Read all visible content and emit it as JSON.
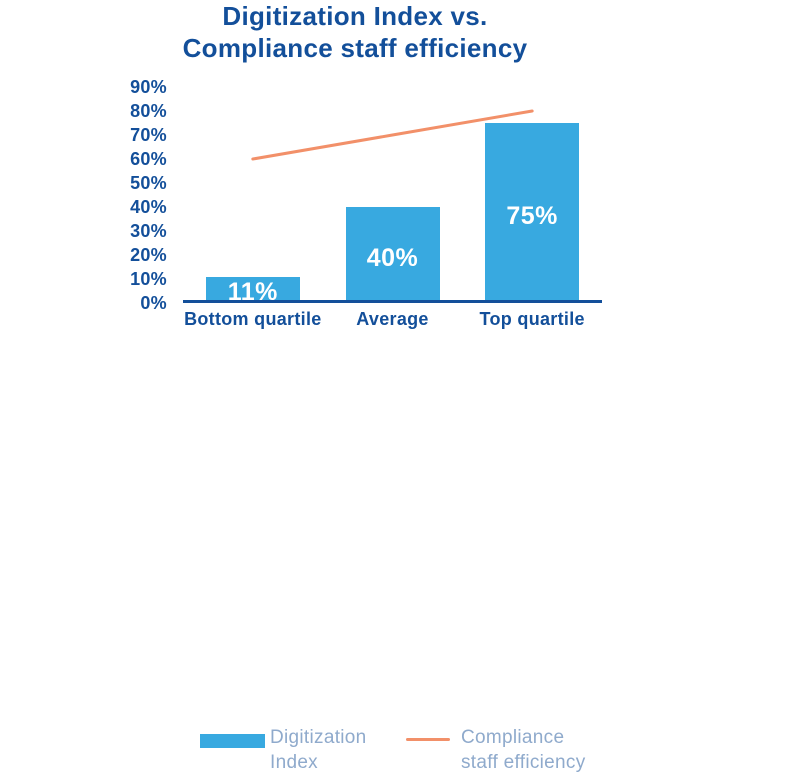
{
  "chart_data": {
    "type": "combo-bar-line",
    "title": "Digitization Index vs. Compliance staff efficiency",
    "title_lines": [
      "Digitization Index vs.",
      "Compliance staff efficiency"
    ],
    "categories": [
      "Bottom quartile",
      "Average",
      "Top quartile"
    ],
    "series": [
      {
        "name": "Digitization Index",
        "type": "bar",
        "values": [
          11,
          40,
          75
        ],
        "value_labels": [
          "11%",
          "40%",
          "75%"
        ]
      },
      {
        "name": "Compliance staff efficiency",
        "type": "line",
        "values": [
          60,
          70,
          80
        ],
        "value_labels": []
      }
    ],
    "xlabel": "",
    "ylabel": "",
    "ylim": [
      0,
      90
    ],
    "ytick_step": 10,
    "ytick_labels_top_to_bottom": [
      "90%",
      "80%",
      "70%",
      "60%",
      "50%",
      "40%",
      "30%",
      "20%",
      "10%",
      "0%"
    ],
    "grid": false,
    "legend_position": "bottom",
    "legend": [
      {
        "swatch": "bar-swatch",
        "lines": [
          "Digitization",
          "Index"
        ]
      },
      {
        "swatch": "line-swatch",
        "lines": [
          "Compliance",
          "staff efficiency"
        ]
      }
    ],
    "colors": {
      "ink": "#134F9A",
      "bar": "#38A9E0",
      "line": "#F29069",
      "legend_text": "#8FAACC",
      "bar_label": "#FFFFFF"
    }
  }
}
